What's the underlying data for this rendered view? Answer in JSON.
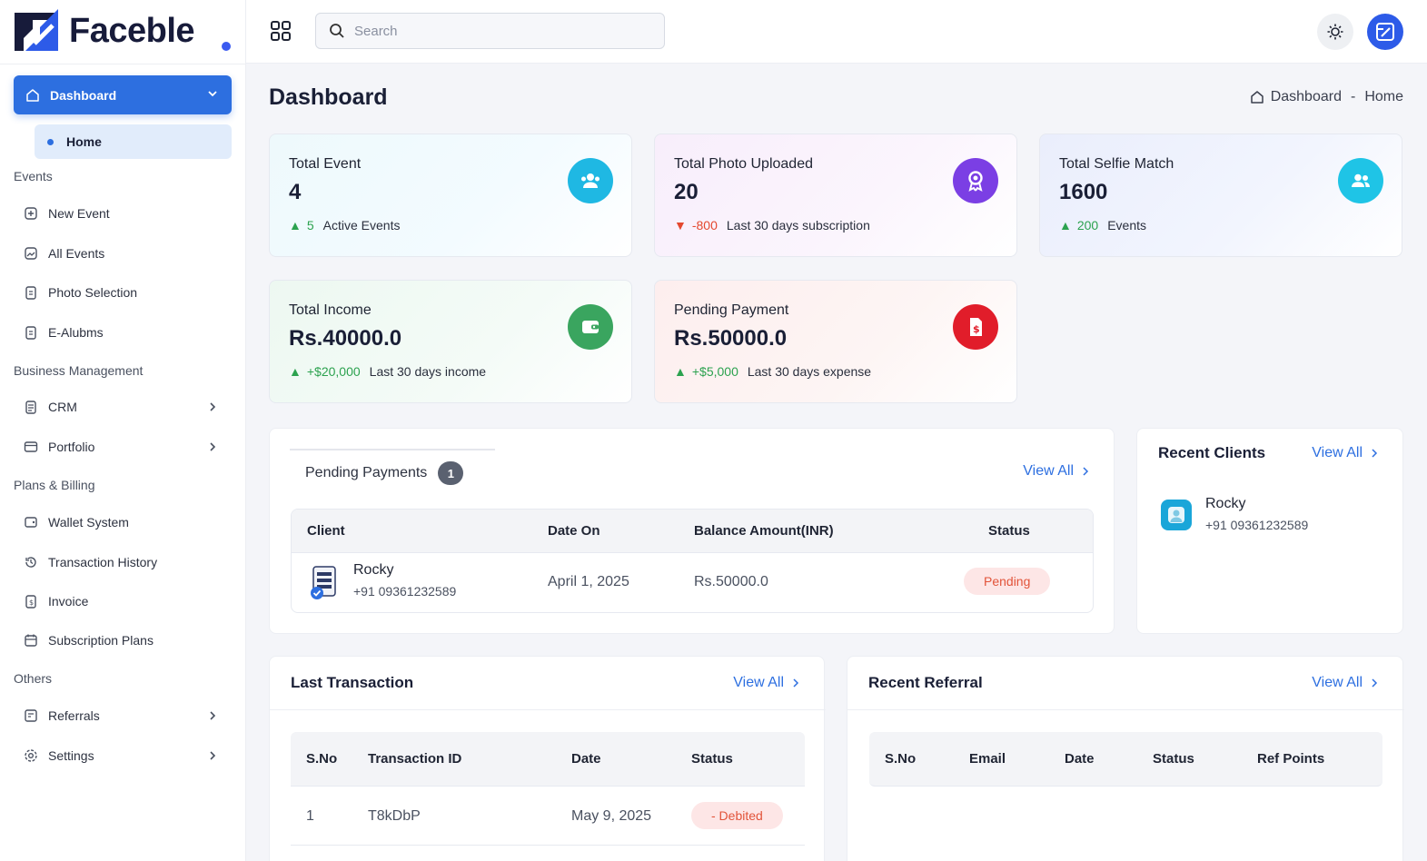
{
  "app": {
    "name": "Faceble"
  },
  "search": {
    "placeholder": "Search"
  },
  "sidebar": {
    "active": {
      "label": "Dashboard",
      "sub_label": "Home"
    },
    "sections": {
      "events": "Events",
      "business": "Business Management",
      "billing": "Plans & Billing",
      "others": "Others"
    },
    "items": {
      "new_event": "New Event",
      "all_events": "All Events",
      "photo_selection": "Photo Selection",
      "e_albums": "E-Alubms",
      "crm": "CRM",
      "portfolio": "Portfolio",
      "wallet": "Wallet System",
      "transactions": "Transaction History",
      "invoice": "Invoice",
      "subscription": "Subscription Plans",
      "referrals": "Referrals",
      "settings": "Settings"
    }
  },
  "page": {
    "title": "Dashboard",
    "breadcrumb": {
      "parent": "Dashboard",
      "sep": "-",
      "current": "Home"
    }
  },
  "stats": {
    "total_event": {
      "label": "Total Event",
      "value": "4",
      "delta": "5",
      "note": "Active Events"
    },
    "total_photo": {
      "label": "Total Photo Uploaded",
      "value": "20",
      "delta": "-800",
      "note": "Last 30 days subscription"
    },
    "total_selfie": {
      "label": "Total Selfie Match",
      "value": "1600",
      "delta": "200",
      "note": "Events"
    },
    "total_income": {
      "label": "Total Income",
      "value": "Rs.40000.0",
      "delta": "+$20,000",
      "note": "Last 30 days income"
    },
    "pending_payment": {
      "label": "Pending Payment",
      "value": "Rs.50000.0",
      "delta": "+$5,000",
      "note": "Last 30 days expense"
    }
  },
  "pending_payments": {
    "title": "Pending Payments",
    "count": "1",
    "view_all": "View All",
    "columns": {
      "client": "Client",
      "date": "Date On",
      "balance": "Balance Amount(INR)",
      "status": "Status"
    },
    "row": {
      "name": "Rocky",
      "phone": "+91 09361232589",
      "date": "April 1, 2025",
      "balance": "Rs.50000.0",
      "status": "Pending"
    }
  },
  "recent_clients": {
    "title": "Recent Clients",
    "view_all": "View All",
    "client": {
      "name": "Rocky",
      "phone": "+91 09361232589"
    }
  },
  "last_transaction": {
    "title": "Last Transaction",
    "view_all": "View All",
    "columns": {
      "sno": "S.No",
      "id": "Transaction ID",
      "date": "Date",
      "status": "Status"
    },
    "row": {
      "sno": "1",
      "id": "T8kDbP",
      "date": "May 9, 2025",
      "status": "- Debited"
    }
  },
  "recent_referral": {
    "title": "Recent Referral",
    "view_all": "View All",
    "columns": {
      "sno": "S.No",
      "email": "Email",
      "date": "Date",
      "status": "Status",
      "points": "Ref Points"
    }
  },
  "colors": {
    "primary": "#2d6fe0",
    "success": "#2ca24f",
    "danger": "#e4482f",
    "icon_cyan": "#1fb8e3",
    "icon_purple": "#7b3fe4",
    "icon_green": "#3aa55f",
    "icon_red": "#e11d2a"
  }
}
